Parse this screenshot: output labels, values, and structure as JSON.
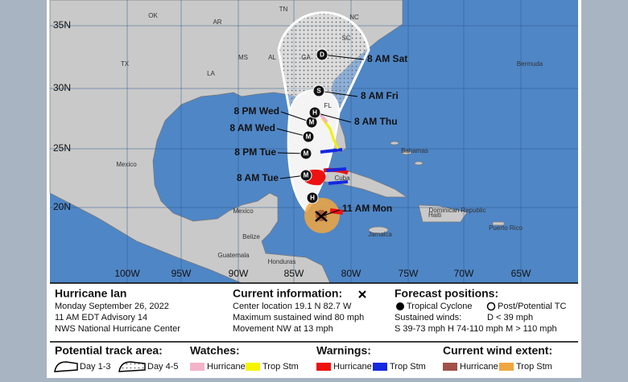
{
  "map": {
    "lat_labels": [
      "35N",
      "30N",
      "25N",
      "20N"
    ],
    "lon_labels": [
      "100W",
      "95W",
      "90W",
      "85W",
      "80W",
      "75W",
      "70W",
      "65W"
    ],
    "places": [
      "OK",
      "AR",
      "TN",
      "NC",
      "SC",
      "TX",
      "MS",
      "AL",
      "GA",
      "LA",
      "FL",
      "Mexico",
      "Mexico",
      "Bahamas",
      "Cuba",
      "Jamaica",
      "Haiti",
      "Dominican Republic",
      "Puerto Rico",
      "Guatemala",
      "Belize",
      "Honduras",
      "Bermuda"
    ],
    "current_label": "11 AM Mon",
    "track": [
      {
        "symbol": "H"
      },
      {
        "symbol": "M",
        "label": "8 AM Tue"
      },
      {
        "symbol": "M",
        "label": "8 PM Tue"
      },
      {
        "symbol": "M",
        "label": "8 AM Wed"
      },
      {
        "symbol": "M",
        "label": "8 PM Wed"
      },
      {
        "symbol": "H",
        "label": "8 AM Thu"
      },
      {
        "symbol": "S",
        "label": "8 AM Fri"
      },
      {
        "symbol": "D",
        "label": "8 AM Sat"
      }
    ]
  },
  "info": {
    "storm": "Hurricane Ian",
    "date": "Monday September 26, 2022",
    "advisory": "11 AM EDT Advisory 14",
    "source": "NWS National Hurricane Center"
  },
  "current": {
    "heading": "Current information:",
    "location": "Center location 19.1 N 82.7 W",
    "wind": "Maximum sustained wind 80 mph",
    "movement": "Movement NW at 13 mph"
  },
  "forecast": {
    "heading": "Forecast positions:",
    "tropical": "Tropical Cyclone",
    "post": "Post/Potential TC",
    "winds_heading": "Sustained winds:",
    "d": "D < 39 mph",
    "scale": "S 39-73 mph H 74-110 mph M > 110 mph"
  },
  "legend": {
    "track": {
      "heading": "Potential track area:",
      "items": [
        "Day 1-3",
        "Day 4-5"
      ]
    },
    "watches": {
      "heading": "Watches:",
      "items": [
        "Hurricane",
        "Trop Stm"
      ]
    },
    "warnings": {
      "heading": "Warnings:",
      "items": [
        "Hurricane",
        "Trop Stm"
      ]
    },
    "wind": {
      "heading": "Current wind extent:",
      "items": [
        "Hurricane",
        "Trop Stm"
      ]
    }
  }
}
